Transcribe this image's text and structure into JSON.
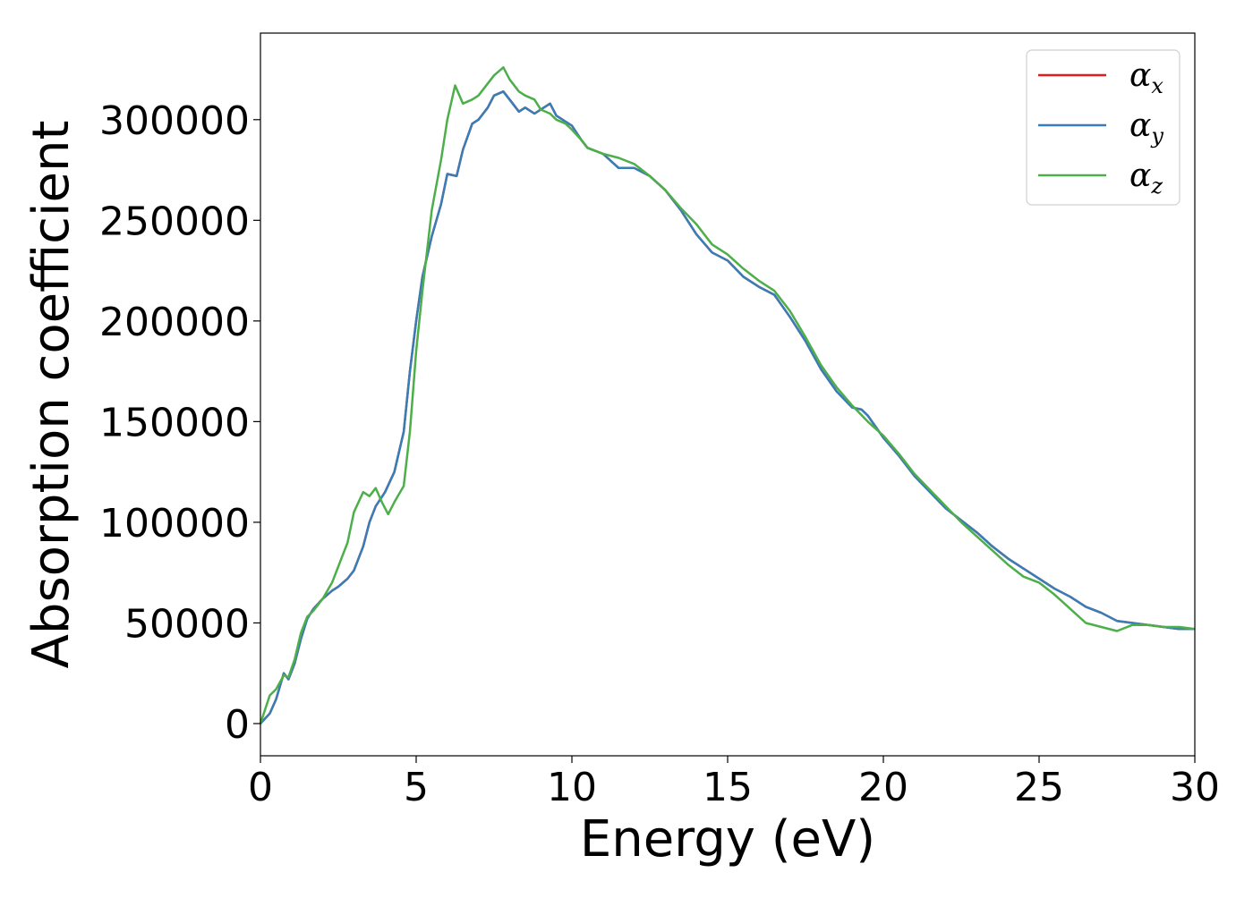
{
  "chart_data": {
    "type": "line",
    "title": "",
    "xlabel": "Energy (eV)",
    "ylabel": "Absorption coefficient",
    "xlim": [
      0,
      30
    ],
    "ylim": [
      -16000,
      343000
    ],
    "xticks": [
      0,
      5,
      10,
      15,
      20,
      25,
      30
    ],
    "xtick_labels": [
      "0",
      "5",
      "10",
      "15",
      "20",
      "25",
      "30"
    ],
    "yticks": [
      0,
      50000,
      100000,
      150000,
      200000,
      250000,
      300000
    ],
    "ytick_labels": [
      "0",
      "50000",
      "100000",
      "150000",
      "200000",
      "250000",
      "300000"
    ],
    "grid": false,
    "legend_position": "top-right",
    "series": [
      {
        "name": "α",
        "subscript": "x",
        "color": "#e41a1c",
        "x": [
          0,
          0.3,
          0.5,
          0.75,
          0.9,
          1.1,
          1.3,
          1.5,
          1.7,
          2.0,
          2.3,
          2.5,
          2.8,
          3.0,
          3.3,
          3.5,
          3.7,
          4.0,
          4.3,
          4.6,
          4.8,
          5.0,
          5.2,
          5.5,
          5.8,
          6.0,
          6.3,
          6.5,
          6.8,
          7.0,
          7.3,
          7.5,
          7.8,
          8.0,
          8.3,
          8.5,
          8.8,
          9.0,
          9.3,
          9.5,
          9.8,
          10.0,
          10.3,
          10.5,
          11.0,
          11.5,
          12.0,
          12.5,
          13.0,
          13.5,
          14.0,
          14.5,
          15.0,
          15.5,
          16.0,
          16.5,
          17.0,
          17.5,
          18.0,
          18.5,
          19.0,
          19.3,
          19.5,
          20.0,
          20.5,
          21.0,
          21.5,
          22.0,
          22.5,
          23.0,
          23.5,
          24.0,
          24.5,
          25.0,
          25.5,
          26.0,
          26.5,
          27.0,
          27.5,
          28.0,
          28.5,
          29.0,
          29.5,
          30.0
        ],
        "values": [
          0,
          5000,
          12000,
          25000,
          22000,
          30000,
          42000,
          52000,
          57000,
          62000,
          66000,
          68000,
          72000,
          76000,
          88000,
          100000,
          108000,
          115000,
          125000,
          145000,
          175000,
          200000,
          222000,
          242000,
          258000,
          273000,
          272000,
          285000,
          298000,
          300000,
          306000,
          312000,
          314000,
          310000,
          304000,
          306000,
          303000,
          305000,
          308000,
          302000,
          299000,
          297000,
          290000,
          286000,
          283000,
          276000,
          276000,
          272000,
          265000,
          255000,
          243000,
          234000,
          230000,
          222000,
          217000,
          213000,
          202000,
          190000,
          176000,
          165000,
          157000,
          156000,
          153000,
          142000,
          133000,
          123000,
          115000,
          107000,
          101000,
          95000,
          88000,
          82000,
          77000,
          72000,
          67000,
          63000,
          58000,
          55000,
          51000,
          50000,
          49000,
          48000,
          47000,
          47000
        ]
      },
      {
        "name": "α",
        "subscript": "y",
        "color": "#377eb8",
        "x": [
          0,
          0.3,
          0.5,
          0.75,
          0.9,
          1.1,
          1.3,
          1.5,
          1.7,
          2.0,
          2.3,
          2.5,
          2.8,
          3.0,
          3.3,
          3.5,
          3.7,
          4.0,
          4.3,
          4.6,
          4.8,
          5.0,
          5.2,
          5.5,
          5.8,
          6.0,
          6.3,
          6.5,
          6.8,
          7.0,
          7.3,
          7.5,
          7.8,
          8.0,
          8.3,
          8.5,
          8.8,
          9.0,
          9.3,
          9.5,
          9.8,
          10.0,
          10.3,
          10.5,
          11.0,
          11.5,
          12.0,
          12.5,
          13.0,
          13.5,
          14.0,
          14.5,
          15.0,
          15.5,
          16.0,
          16.5,
          17.0,
          17.5,
          18.0,
          18.5,
          19.0,
          19.3,
          19.5,
          20.0,
          20.5,
          21.0,
          21.5,
          22.0,
          22.5,
          23.0,
          23.5,
          24.0,
          24.5,
          25.0,
          25.5,
          26.0,
          26.5,
          27.0,
          27.5,
          28.0,
          28.5,
          29.0,
          29.5,
          30.0
        ],
        "values": [
          0,
          5000,
          12000,
          25000,
          22000,
          30000,
          42000,
          52000,
          57000,
          62000,
          66000,
          68000,
          72000,
          76000,
          88000,
          100000,
          108000,
          115000,
          125000,
          145000,
          175000,
          200000,
          222000,
          242000,
          258000,
          273000,
          272000,
          285000,
          298000,
          300000,
          306000,
          312000,
          314000,
          310000,
          304000,
          306000,
          303000,
          305000,
          308000,
          302000,
          299000,
          297000,
          290000,
          286000,
          283000,
          276000,
          276000,
          272000,
          265000,
          255000,
          243000,
          234000,
          230000,
          222000,
          217000,
          213000,
          202000,
          190000,
          176000,
          165000,
          157000,
          156000,
          153000,
          142000,
          133000,
          123000,
          115000,
          107000,
          101000,
          95000,
          88000,
          82000,
          77000,
          72000,
          67000,
          63000,
          58000,
          55000,
          51000,
          50000,
          49000,
          48000,
          47000,
          47000
        ]
      },
      {
        "name": "α",
        "subscript": "z",
        "color": "#4daf4a",
        "x": [
          0,
          0.3,
          0.5,
          0.75,
          0.9,
          1.1,
          1.3,
          1.5,
          1.7,
          2.0,
          2.3,
          2.5,
          2.8,
          3.0,
          3.3,
          3.5,
          3.7,
          3.9,
          4.1,
          4.3,
          4.6,
          4.8,
          5.0,
          5.2,
          5.5,
          5.8,
          6.0,
          6.25,
          6.5,
          6.8,
          7.0,
          7.3,
          7.5,
          7.8,
          8.0,
          8.3,
          8.5,
          8.8,
          9.0,
          9.3,
          9.5,
          9.8,
          10.0,
          10.3,
          10.5,
          11.0,
          11.5,
          12.0,
          12.5,
          13.0,
          13.5,
          14.0,
          14.5,
          15.0,
          15.5,
          16.0,
          16.5,
          17.0,
          17.5,
          18.0,
          18.5,
          19.0,
          19.5,
          20.0,
          20.5,
          21.0,
          21.5,
          22.0,
          22.5,
          23.0,
          23.5,
          24.0,
          24.5,
          25.0,
          25.5,
          26.0,
          26.5,
          27.0,
          27.5,
          28.0,
          28.5,
          29.0,
          29.5,
          30.0
        ],
        "values": [
          0,
          14000,
          17000,
          24000,
          23000,
          32000,
          45000,
          53000,
          56000,
          62000,
          70000,
          78000,
          90000,
          105000,
          115000,
          113000,
          117000,
          110000,
          104000,
          110000,
          118000,
          145000,
          185000,
          215000,
          255000,
          280000,
          300000,
          317000,
          308000,
          310000,
          312000,
          318000,
          322000,
          326000,
          320000,
          314000,
          312000,
          310000,
          305000,
          303000,
          300000,
          298000,
          295000,
          290000,
          286000,
          283000,
          281000,
          278000,
          272000,
          265000,
          256000,
          248000,
          238000,
          233000,
          226000,
          220000,
          215000,
          205000,
          192000,
          178000,
          167000,
          158000,
          150000,
          143000,
          134000,
          124000,
          116000,
          108000,
          100000,
          93000,
          86000,
          79000,
          73000,
          70000,
          64000,
          57000,
          50000,
          48000,
          46000,
          49000,
          49000,
          48000,
          48000,
          47000
        ]
      }
    ]
  }
}
